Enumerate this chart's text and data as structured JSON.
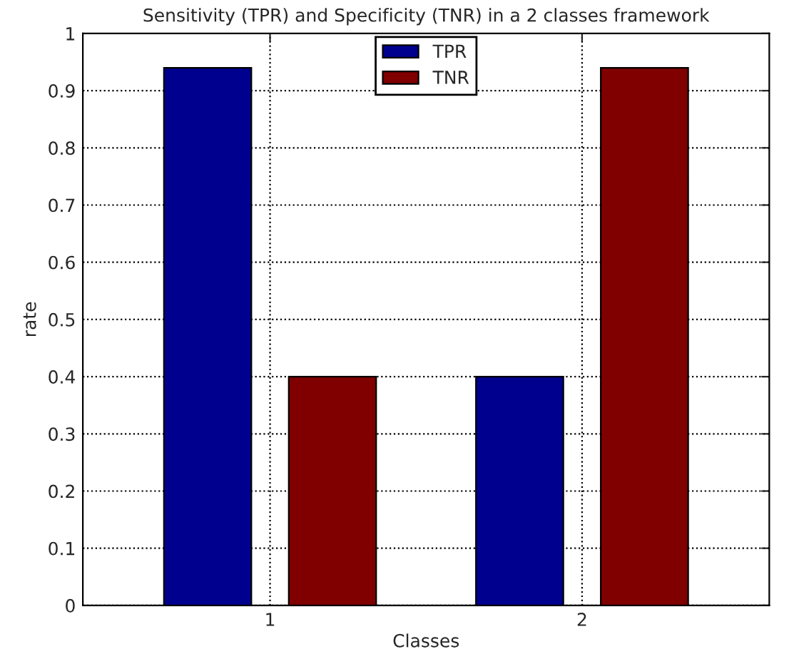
{
  "chart_data": {
    "type": "bar",
    "title": "Sensitivity (TPR) and Specificity (TNR) in a 2 classes framework",
    "xlabel": "Classes",
    "ylabel": "rate",
    "categories": [
      "1",
      "2"
    ],
    "series": [
      {
        "name": "TPR",
        "color": "#00008f",
        "values": [
          0.94,
          0.4
        ]
      },
      {
        "name": "TNR",
        "color": "#800000",
        "values": [
          0.4,
          0.94
        ]
      }
    ],
    "ylim": [
      0,
      1
    ],
    "yticks": [
      0,
      0.1,
      0.2,
      0.3,
      0.4,
      0.5,
      0.6,
      0.7,
      0.8,
      0.9,
      1
    ],
    "grid": true,
    "legend": "top"
  }
}
